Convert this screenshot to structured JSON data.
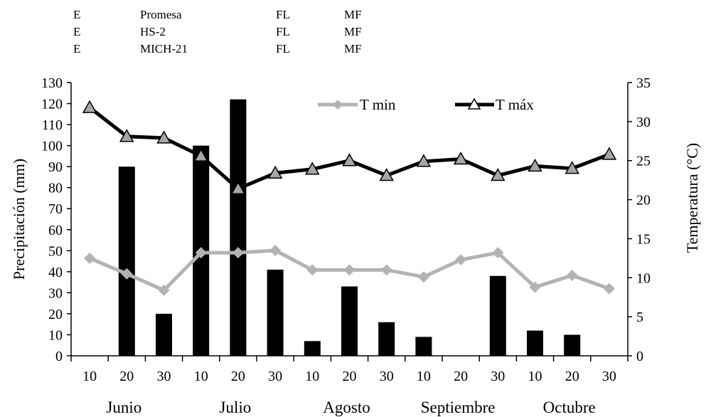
{
  "header_table": {
    "rows": [
      [
        "E",
        "Promesa",
        "FL",
        "MF"
      ],
      [
        "E",
        "HS-2",
        "FL",
        "MF"
      ],
      [
        "E",
        "MICH-21",
        "FL",
        "MF"
      ]
    ]
  },
  "chart_data": {
    "type": "bar",
    "title": "",
    "categories": [
      "10",
      "20",
      "30",
      "10",
      "20",
      "30",
      "10",
      "20",
      "30",
      "10",
      "20",
      "30",
      "10",
      "20",
      "30"
    ],
    "months": [
      "Junio",
      "Julio",
      "Agosto",
      "Septiembre",
      "Octubre"
    ],
    "ylabel": "Precipitación (mm)",
    "y2label": "Temperatura (°C)",
    "ylim": [
      0,
      130
    ],
    "y2lim": [
      0,
      35
    ],
    "yticks": [
      "0",
      "10",
      "20",
      "30",
      "40",
      "50",
      "60",
      "70",
      "80",
      "90",
      "100",
      "110",
      "120",
      "130"
    ],
    "y2ticks": [
      "0",
      "5",
      "10",
      "15",
      "20",
      "25",
      "30",
      "35"
    ],
    "grid": false,
    "legend_placement": "top-right",
    "precipitation": [
      0,
      90,
      20,
      100,
      122,
      41,
      7,
      33,
      16,
      9,
      0,
      38,
      12,
      10,
      0
    ],
    "series": [
      {
        "name": "T min",
        "axis": "right",
        "type": "line",
        "color": "#b3b3b3",
        "marker": "diamond",
        "values": [
          12.5,
          10.5,
          8.4,
          13.2,
          13.2,
          13.5,
          11.0,
          11.0,
          11.0,
          10.1,
          12.3,
          13.2,
          8.8,
          10.3,
          8.6
        ]
      },
      {
        "name": "T máx",
        "axis": "right",
        "type": "line",
        "color": "#000000",
        "marker": "triangle",
        "values": [
          31.8,
          28.1,
          27.9,
          25.6,
          21.4,
          23.4,
          23.9,
          25.0,
          23.1,
          24.9,
          25.2,
          23.1,
          24.3,
          24.0,
          25.8
        ]
      }
    ],
    "bar_color": "#000000"
  }
}
